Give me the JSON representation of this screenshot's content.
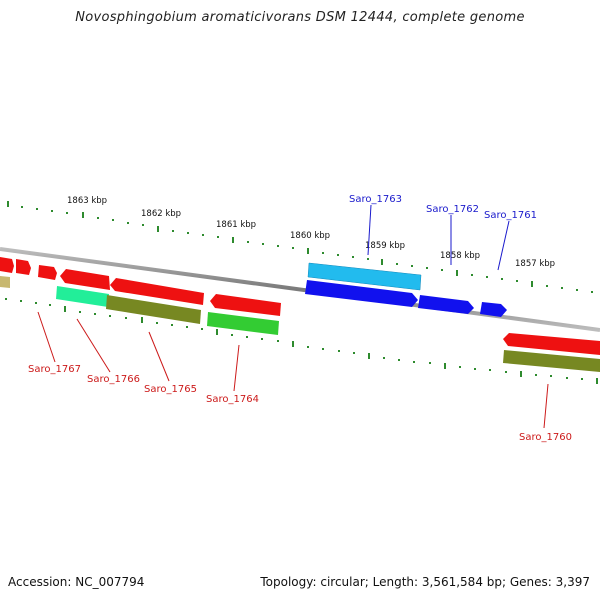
{
  "title": "Novosphingobium aromaticivorans DSM 12444, complete genome",
  "accession": "Accession: NC_007794",
  "topology": "Topology: circular; Length: 3,561,584 bp; Genes: 3,397",
  "colors": {
    "backbone": "#8a8a8a",
    "tick": "#2e8b2e",
    "label_forward": "#1a1acc",
    "label_reverse": "#cc1a1a",
    "red_gene": "#ee1111",
    "blue_gene": "#1111ee",
    "cyan_gene": "#22bbee",
    "olive_gene": "#778822",
    "green_gene": "#33cc33",
    "teal_gene": "#22ee99",
    "tan_gene": "#c8b870"
  },
  "kbp_labels": [
    "1863 kbp",
    "1862 kbp",
    "1861 kbp",
    "1860 kbp",
    "1859 kbp",
    "1858 kbp",
    "1857 kbp"
  ],
  "gene_labels": {
    "forward": [
      "Saro_1763",
      "Saro_1762",
      "Saro_1761"
    ],
    "reverse": [
      "Saro_1767",
      "Saro_1766",
      "Saro_1765",
      "Saro_1764",
      "Saro_1760"
    ]
  }
}
